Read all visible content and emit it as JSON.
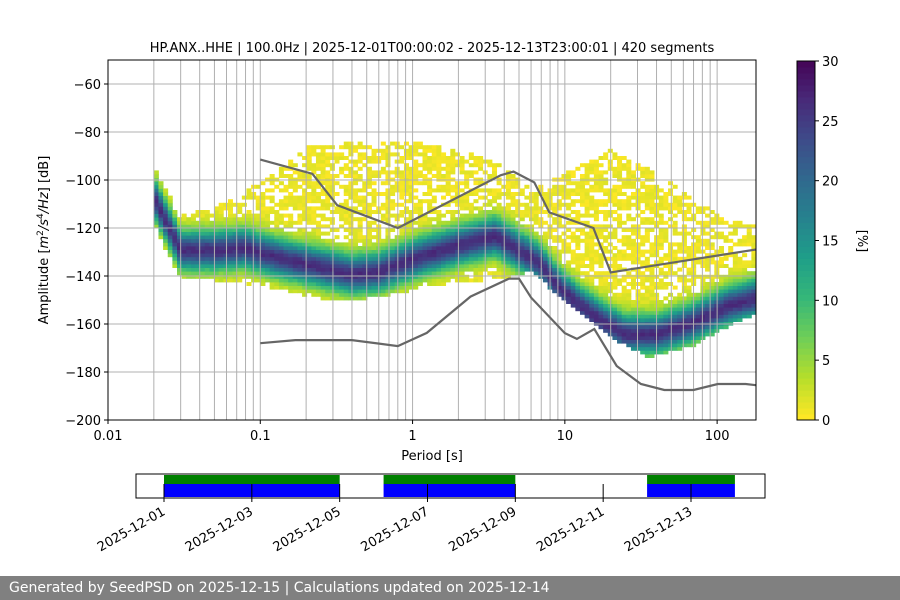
{
  "chart_data": [
    {
      "type": "heatmap",
      "title": "HP.ANX..HHE | 100.0Hz | 2025-12-01T00:00:02 - 2025-12-13T23:00:01 | 420 segments",
      "xlabel": "Period [s]",
      "ylabel": "Amplitude [m²/s⁴/Hz] [dB]",
      "x_scale": "log",
      "xlim": [
        0.01,
        180
      ],
      "ylim": [
        -200,
        -50
      ],
      "x_tick_labels": [
        "0.01",
        "0.1",
        "1",
        "10",
        "100"
      ],
      "y_ticks": [
        -60,
        -80,
        -100,
        -120,
        -140,
        -160,
        -180,
        -200
      ],
      "grid": "vertical at log-decade subdivisions, horizontal at y ticks",
      "colorbar": {
        "label": "[%]",
        "min": 0,
        "max": 30,
        "ticks": [
          0,
          5,
          10,
          15,
          20,
          25,
          30
        ],
        "colormap": "viridis_r"
      },
      "mode_curve": [
        {
          "x": 0.02,
          "y": -108
        },
        {
          "x": 0.025,
          "y": -120
        },
        {
          "x": 0.03,
          "y": -130
        },
        {
          "x": 0.05,
          "y": -130
        },
        {
          "x": 0.08,
          "y": -129
        },
        {
          "x": 0.1,
          "y": -131
        },
        {
          "x": 0.15,
          "y": -134
        },
        {
          "x": 0.25,
          "y": -137
        },
        {
          "x": 0.4,
          "y": -140
        },
        {
          "x": 0.6,
          "y": -139
        },
        {
          "x": 0.8,
          "y": -136
        },
        {
          "x": 1.2,
          "y": -132
        },
        {
          "x": 2,
          "y": -128
        },
        {
          "x": 3.5,
          "y": -124
        },
        {
          "x": 5,
          "y": -130
        },
        {
          "x": 6,
          "y": -133
        },
        {
          "x": 7,
          "y": -136
        },
        {
          "x": 9,
          "y": -145
        },
        {
          "x": 12,
          "y": -152
        },
        {
          "x": 18,
          "y": -160
        },
        {
          "x": 25,
          "y": -165
        },
        {
          "x": 40,
          "y": -165
        },
        {
          "x": 70,
          "y": -160
        },
        {
          "x": 120,
          "y": -153
        },
        {
          "x": 180,
          "y": -150
        }
      ],
      "band_upper": [
        {
          "x": 0.02,
          "y": -95
        },
        {
          "x": 0.03,
          "y": -115
        },
        {
          "x": 0.05,
          "y": -112
        },
        {
          "x": 0.1,
          "y": -102
        },
        {
          "x": 0.2,
          "y": -87
        },
        {
          "x": 0.5,
          "y": -84
        },
        {
          "x": 1,
          "y": -85
        },
        {
          "x": 2,
          "y": -88
        },
        {
          "x": 4,
          "y": -95
        },
        {
          "x": 6,
          "y": -105
        },
        {
          "x": 10,
          "y": -98
        },
        {
          "x": 20,
          "y": -88
        },
        {
          "x": 40,
          "y": -98
        },
        {
          "x": 100,
          "y": -115
        },
        {
          "x": 180,
          "y": -120
        }
      ],
      "band_lower": [
        {
          "x": 0.02,
          "y": -118
        },
        {
          "x": 0.03,
          "y": -140
        },
        {
          "x": 0.1,
          "y": -143
        },
        {
          "x": 0.3,
          "y": -150
        },
        {
          "x": 0.6,
          "y": -148
        },
        {
          "x": 1,
          "y": -145
        },
        {
          "x": 2,
          "y": -142
        },
        {
          "x": 4,
          "y": -140
        },
        {
          "x": 6,
          "y": -137
        },
        {
          "x": 10,
          "y": -150
        },
        {
          "x": 20,
          "y": -165
        },
        {
          "x": 35,
          "y": -173
        },
        {
          "x": 70,
          "y": -168
        },
        {
          "x": 120,
          "y": -160
        },
        {
          "x": 180,
          "y": -155
        }
      ],
      "nhnm": [
        {
          "x": 0.1,
          "y": -91.5
        },
        {
          "x": 0.22,
          "y": -97.4
        },
        {
          "x": 0.32,
          "y": -110.5
        },
        {
          "x": 0.8,
          "y": -120
        },
        {
          "x": 3.8,
          "y": -98
        },
        {
          "x": 4.6,
          "y": -96.5
        },
        {
          "x": 6.3,
          "y": -101
        },
        {
          "x": 7.9,
          "y": -113.5
        },
        {
          "x": 15.4,
          "y": -120
        },
        {
          "x": 20,
          "y": -138.5
        },
        {
          "x": 354,
          "y": -126
        }
      ],
      "nlnm": [
        {
          "x": 0.1,
          "y": -168
        },
        {
          "x": 0.17,
          "y": -166.7
        },
        {
          "x": 0.4,
          "y": -166.7
        },
        {
          "x": 0.8,
          "y": -169.2
        },
        {
          "x": 1.24,
          "y": -163.7
        },
        {
          "x": 2.4,
          "y": -148.6
        },
        {
          "x": 4.3,
          "y": -141.1
        },
        {
          "x": 5,
          "y": -141.1
        },
        {
          "x": 6,
          "y": -149
        },
        {
          "x": 10,
          "y": -163.8
        },
        {
          "x": 12,
          "y": -166.2
        },
        {
          "x": 15.6,
          "y": -162.1
        },
        {
          "x": 21.9,
          "y": -177.5
        },
        {
          "x": 31.6,
          "y": -185
        },
        {
          "x": 45,
          "y": -187.5
        },
        {
          "x": 70,
          "y": -187.5
        },
        {
          "x": 101,
          "y": -185
        },
        {
          "x": 154,
          "y": -185
        },
        {
          "x": 180,
          "y": -185.5
        }
      ]
    },
    {
      "type": "timeline",
      "x_tick_labels": [
        "2025-12-01",
        "2025-12-03",
        "2025-12-05",
        "2025-12-07",
        "2025-12-09",
        "2025-12-11",
        "2025-12-13"
      ],
      "date_range": [
        "2025-12-01",
        "2025-12-15"
      ],
      "coverage_segments": [
        {
          "start": "2025-12-01",
          "end": "2025-12-05"
        },
        {
          "start": "2025-12-06",
          "end": "2025-12-09"
        },
        {
          "start": "2025-12-12",
          "end": "2025-12-14"
        }
      ],
      "colors": {
        "data": "#0000ff",
        "processed": "#008000"
      }
    }
  ],
  "footer": {
    "text": "Generated by SeedPSD on 2025-12-15 | Calculations updated on 2025-12-14"
  },
  "colors": {
    "noise_models": "#666666",
    "grid": "#b0b0b0"
  }
}
